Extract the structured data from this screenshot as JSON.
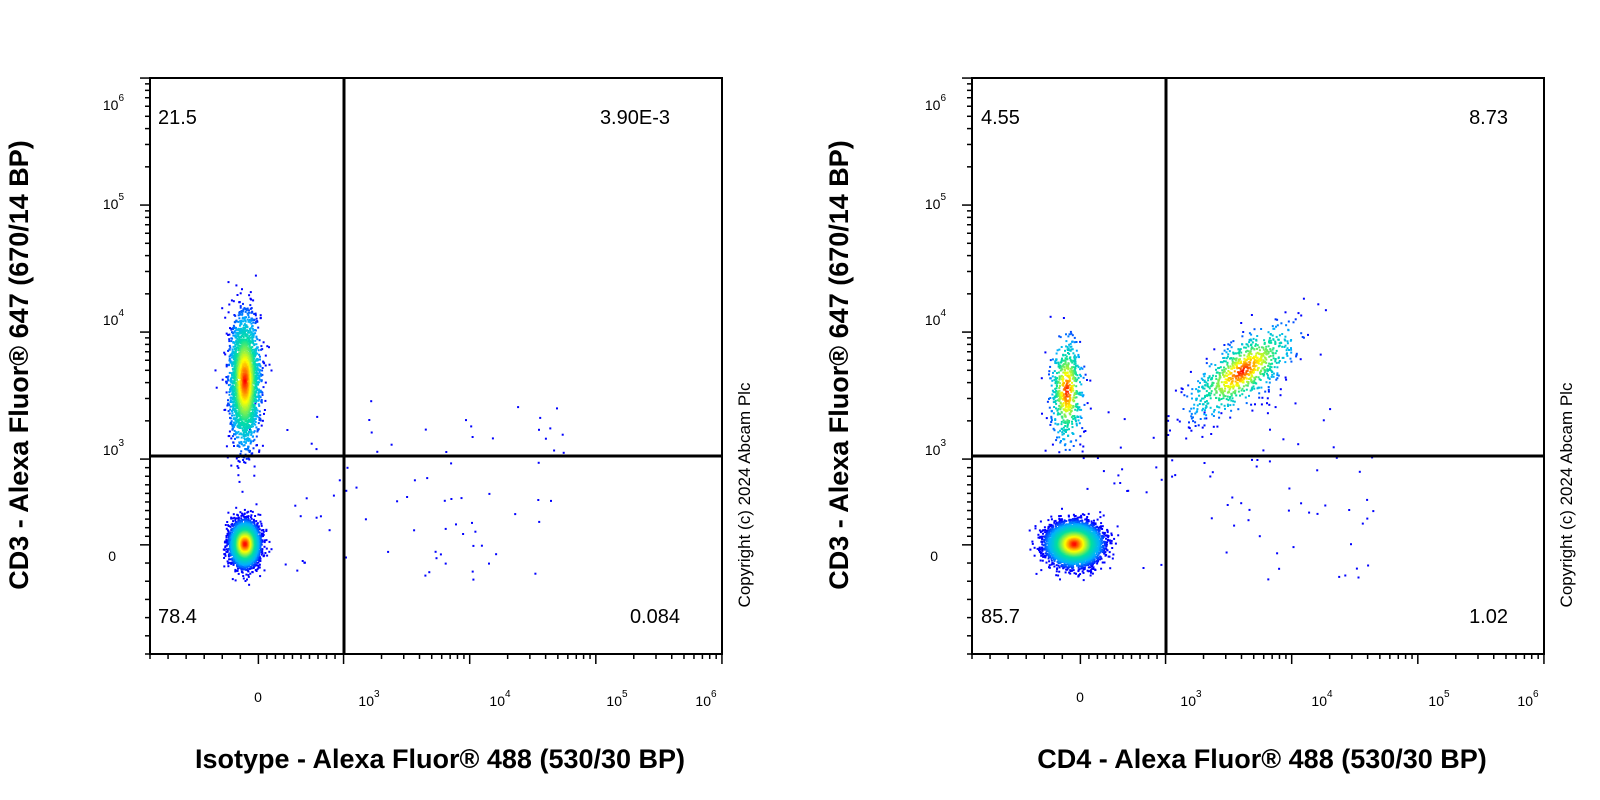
{
  "chart_data": [
    {
      "type": "scatter",
      "xlabel": "Isotype - Alexa Fluor® 488 (530/30 BP)",
      "ylabel": "CD3 - Alexa Fluor® 647 (670/14 BP)",
      "copyright": "Copyright (c) 2024 Abcam Plc",
      "x_scale": "biexponential",
      "y_scale": "biexponential",
      "xlim": [
        -300,
        1000000
      ],
      "ylim": [
        -300,
        1000000
      ],
      "x_ticks": [
        {
          "base": "0",
          "exp": ""
        },
        {
          "base": "10",
          "exp": "3"
        },
        {
          "base": "10",
          "exp": "4"
        },
        {
          "base": "10",
          "exp": "5"
        },
        {
          "base": "10",
          "exp": "6"
        }
      ],
      "y_ticks": [
        {
          "base": "0",
          "exp": ""
        },
        {
          "base": "10",
          "exp": "3"
        },
        {
          "base": "10",
          "exp": "4"
        },
        {
          "base": "10",
          "exp": "5"
        },
        {
          "base": "10",
          "exp": "6"
        }
      ],
      "gate": {
        "x": 780,
        "y": 780
      },
      "quadrants": {
        "upper_left": "21.5",
        "upper_right": "3.90E-3",
        "lower_left": "78.4",
        "lower_right": "0.084"
      },
      "populations": [
        {
          "name": "",
          "x_center": -40,
          "y_center": 20,
          "fraction": 0.62
        },
        {
          "name": "",
          "x_center": -40,
          "y_center": 4200,
          "fraction": 0.38
        }
      ],
      "colormap": [
        "#0000ff",
        "#00b0ff",
        "#00e0a0",
        "#ffff00",
        "#ff0000"
      ]
    },
    {
      "type": "scatter",
      "xlabel": "CD4 - Alexa Fluor® 488 (530/30 BP)",
      "ylabel": "CD3 - Alexa Fluor® 647 (670/14 BP)",
      "copyright": "Copyright (c) 2024 Abcam Plc",
      "x_scale": "biexponential",
      "y_scale": "biexponential",
      "xlim": [
        -300,
        1000000
      ],
      "ylim": [
        -300,
        1000000
      ],
      "x_ticks": [
        {
          "base": "0",
          "exp": ""
        },
        {
          "base": "10",
          "exp": "3"
        },
        {
          "base": "10",
          "exp": "4"
        },
        {
          "base": "10",
          "exp": "5"
        },
        {
          "base": "10",
          "exp": "6"
        }
      ],
      "y_ticks": [
        {
          "base": "0",
          "exp": ""
        },
        {
          "base": "10",
          "exp": "3"
        },
        {
          "base": "10",
          "exp": "4"
        },
        {
          "base": "10",
          "exp": "5"
        },
        {
          "base": "10",
          "exp": "6"
        }
      ],
      "gate": {
        "x": 780,
        "y": 780
      },
      "quadrants": {
        "upper_left": "4.55",
        "upper_right": "8.73",
        "lower_left": "85.7",
        "lower_right": "1.02"
      },
      "populations": [
        {
          "name": "",
          "x_center": -20,
          "y_center": 20,
          "fraction": 0.8
        },
        {
          "name": "",
          "x_center": -40,
          "y_center": 3500,
          "fraction": 0.08
        },
        {
          "name": "",
          "x_center": 4000,
          "y_center": 5000,
          "fraction": 0.12
        }
      ],
      "colormap": [
        "#0000ff",
        "#00b0ff",
        "#00e0a0",
        "#ffff00",
        "#ff0000"
      ]
    }
  ]
}
